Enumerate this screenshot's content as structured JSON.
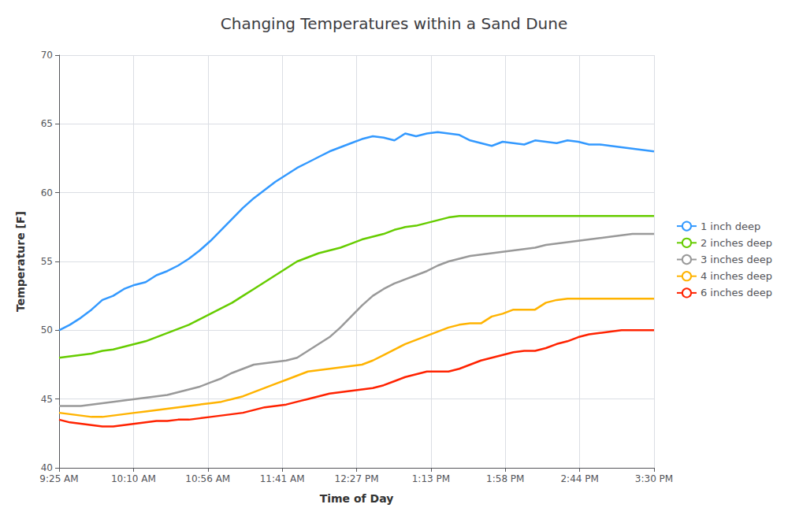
{
  "chart_data": {
    "type": "line",
    "title": "Changing Temperatures within a Sand Dune",
    "xlabel": "Time of Day",
    "ylabel": "Temperature [F]",
    "x": [
      0,
      0.145455,
      0.290909,
      0.436364,
      0.581818,
      0.727273,
      0.872727,
      1.018182,
      1.163636,
      1.309091,
      1.454545,
      1.6,
      1.745455,
      1.890909,
      2.036364,
      2.181818,
      2.327273,
      2.472727,
      2.618182,
      2.763636,
      2.909091,
      3.054545,
      3.2,
      3.345455,
      3.490909,
      3.636364,
      3.781818,
      3.927273,
      4.072727,
      4.218182,
      4.363636,
      4.509091,
      4.654545,
      4.8,
      4.945455,
      5.090909,
      5.236364,
      5.381818,
      5.527273,
      5.672727,
      5.818182,
      5.963636,
      6.109091,
      6.254545,
      6.4,
      6.545455,
      6.690909,
      6.836364,
      6.981818,
      7.127273,
      7.272727,
      7.418182,
      7.563636,
      7.709091,
      7.854545,
      8
    ],
    "xlim": [
      0,
      8
    ],
    "xticks": [
      {
        "value": 0,
        "label": "9:25 AM"
      },
      {
        "value": 1,
        "label": "10:10 AM"
      },
      {
        "value": 2,
        "label": "10:56 AM"
      },
      {
        "value": 3,
        "label": "11:41 AM"
      },
      {
        "value": 4,
        "label": "12:27 PM"
      },
      {
        "value": 5,
        "label": "1:13 PM"
      },
      {
        "value": 6,
        "label": "1:58 PM"
      },
      {
        "value": 7,
        "label": "2:44 PM"
      },
      {
        "value": 8,
        "label": "3:30 PM"
      }
    ],
    "ylim": [
      40,
      70
    ],
    "yticks": [
      40,
      45,
      50,
      55,
      60,
      65,
      70
    ],
    "grid": true,
    "legend": "right",
    "series": [
      {
        "name": "1 inch deep",
        "color": "#3399FF",
        "values": [
          50.0,
          50.4,
          50.9,
          51.5,
          52.2,
          52.5,
          53.0,
          53.3,
          53.5,
          54.0,
          54.3,
          54.7,
          55.2,
          55.8,
          56.5,
          57.3,
          58.1,
          58.9,
          59.6,
          60.2,
          60.8,
          61.3,
          61.8,
          62.2,
          62.6,
          63.0,
          63.3,
          63.6,
          63.9,
          64.1,
          64.0,
          63.8,
          64.3,
          64.1,
          64.3,
          64.4,
          64.3,
          64.2,
          63.8,
          63.6,
          63.4,
          63.7,
          63.6,
          63.5,
          63.8,
          63.7,
          63.6,
          63.8,
          63.7,
          63.5,
          63.5,
          63.4,
          63.3,
          63.2,
          63.1,
          63.0
        ]
      },
      {
        "name": "2 inches deep",
        "color": "#66CC00",
        "values": [
          48.0,
          48.1,
          48.2,
          48.3,
          48.5,
          48.6,
          48.8,
          49.0,
          49.2,
          49.5,
          49.8,
          50.1,
          50.4,
          50.8,
          51.2,
          51.6,
          52.0,
          52.5,
          53.0,
          53.5,
          54.0,
          54.5,
          55.0,
          55.3,
          55.6,
          55.8,
          56.0,
          56.3,
          56.6,
          56.8,
          57.0,
          57.3,
          57.5,
          57.6,
          57.8,
          58.0,
          58.2,
          58.3,
          58.3,
          58.3,
          58.3,
          58.3,
          58.3,
          58.3,
          58.3,
          58.3,
          58.3,
          58.3,
          58.3,
          58.3,
          58.3,
          58.3,
          58.3,
          58.3,
          58.3,
          58.3
        ]
      },
      {
        "name": "3 inches deep",
        "color": "#999999",
        "values": [
          44.5,
          44.5,
          44.5,
          44.6,
          44.7,
          44.8,
          44.9,
          45.0,
          45.1,
          45.2,
          45.3,
          45.5,
          45.7,
          45.9,
          46.2,
          46.5,
          46.9,
          47.2,
          47.5,
          47.6,
          47.7,
          47.8,
          48.0,
          48.5,
          49.0,
          49.5,
          50.2,
          51.0,
          51.8,
          52.5,
          53.0,
          53.4,
          53.7,
          54.0,
          54.3,
          54.7,
          55.0,
          55.2,
          55.4,
          55.5,
          55.6,
          55.7,
          55.8,
          55.9,
          56.0,
          56.2,
          56.3,
          56.4,
          56.5,
          56.6,
          56.7,
          56.8,
          56.9,
          57.0,
          57.0,
          57.0
        ]
      },
      {
        "name": "4 inches deep",
        "color": "#FFB300",
        "values": [
          44.0,
          43.9,
          43.8,
          43.7,
          43.7,
          43.8,
          43.9,
          44.0,
          44.1,
          44.2,
          44.3,
          44.4,
          44.5,
          44.6,
          44.7,
          44.8,
          45.0,
          45.2,
          45.5,
          45.8,
          46.1,
          46.4,
          46.7,
          47.0,
          47.1,
          47.2,
          47.3,
          47.4,
          47.5,
          47.8,
          48.2,
          48.6,
          49.0,
          49.3,
          49.6,
          49.9,
          50.2,
          50.4,
          50.5,
          50.5,
          51.0,
          51.2,
          51.5,
          51.5,
          51.5,
          52.0,
          52.2,
          52.3,
          52.3,
          52.3,
          52.3,
          52.3,
          52.3,
          52.3,
          52.3,
          52.3
        ]
      },
      {
        "name": "6 inches deep",
        "color": "#FF2200",
        "values": [
          43.5,
          43.3,
          43.2,
          43.1,
          43.0,
          43.0,
          43.1,
          43.2,
          43.3,
          43.4,
          43.4,
          43.5,
          43.5,
          43.6,
          43.7,
          43.8,
          43.9,
          44.0,
          44.2,
          44.4,
          44.5,
          44.6,
          44.8,
          45.0,
          45.2,
          45.4,
          45.5,
          45.6,
          45.7,
          45.8,
          46.0,
          46.3,
          46.6,
          46.8,
          47.0,
          47.0,
          47.0,
          47.2,
          47.5,
          47.8,
          48.0,
          48.2,
          48.4,
          48.5,
          48.5,
          48.7,
          49.0,
          49.2,
          49.5,
          49.7,
          49.8,
          49.9,
          50.0,
          50.0,
          50.0,
          50.0
        ]
      }
    ]
  }
}
